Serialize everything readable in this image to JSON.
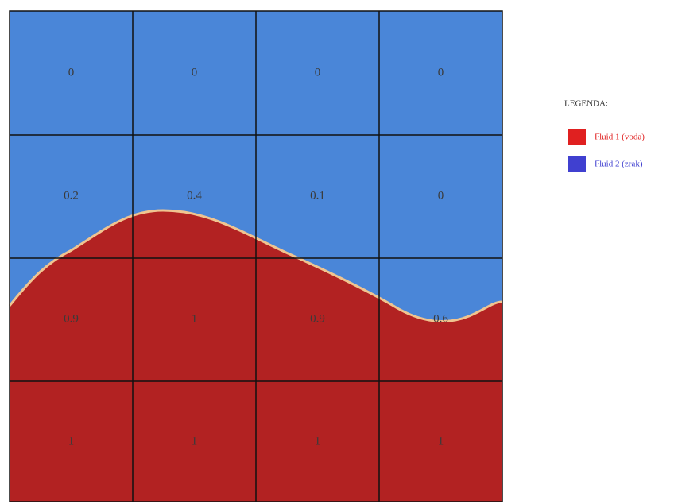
{
  "grid": {
    "rows": [
      [
        0,
        0,
        0,
        0
      ],
      [
        0.2,
        0.4,
        0.1,
        0
      ],
      [
        0.9,
        1,
        0.9,
        0.6
      ],
      [
        1,
        1,
        1,
        1
      ]
    ]
  },
  "legend": {
    "title": "LEGENDA:",
    "items": [
      {
        "label": "Fluid 1 (voda)",
        "color": "#e02020"
      },
      {
        "label": "Fluid 2 (zrak)",
        "color": "#4040d0"
      }
    ]
  }
}
